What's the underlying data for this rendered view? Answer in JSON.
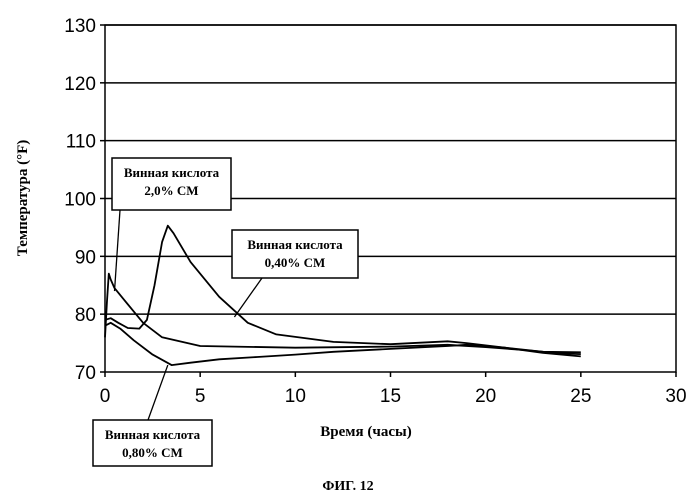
{
  "chart_data": {
    "type": "line",
    "title": "",
    "caption": "ФИГ. 12",
    "xlabel": "Время (часы)",
    "ylabel": "Температура (°F)",
    "xlim": [
      0,
      30
    ],
    "ylim": [
      70,
      130
    ],
    "xticks": [
      0,
      5,
      10,
      15,
      20,
      25,
      30
    ],
    "yticks": [
      70,
      80,
      90,
      100,
      110,
      120,
      130
    ],
    "grid": "horizontal",
    "series": [
      {
        "name": "Винная кислота 2,0% СМ",
        "color": "#000000",
        "x": [
          0,
          0.1,
          0.2,
          0.3,
          0.5,
          1,
          1.5,
          2,
          3,
          5,
          10,
          15,
          18,
          20,
          22,
          24,
          25
        ],
        "y": [
          76,
          82,
          87,
          86,
          84.5,
          82.5,
          80.5,
          78.5,
          76,
          74.5,
          74.2,
          74.4,
          74.7,
          74.3,
          73.8,
          73.2,
          73.1
        ]
      },
      {
        "name": "Винная кислота 0,40% СМ",
        "color": "#000000",
        "x": [
          0,
          0.3,
          0.7,
          1.2,
          1.8,
          2.2,
          2.6,
          3,
          3.3,
          3.6,
          4.5,
          6,
          7.5,
          9,
          12,
          15,
          18,
          19,
          21,
          23,
          25
        ],
        "y": [
          79,
          79.3,
          78.5,
          77.6,
          77.5,
          79,
          85,
          92.5,
          95.3,
          94,
          89,
          83,
          78.5,
          76.5,
          75.2,
          74.8,
          75.3,
          75,
          74.2,
          73.5,
          73.4
        ]
      },
      {
        "name": "Винная кислота 0,80% СМ",
        "color": "#000000",
        "x": [
          0,
          0.3,
          0.8,
          1.5,
          2.5,
          3.5,
          4.5,
          6,
          8,
          10,
          12,
          15,
          18,
          19,
          21,
          23,
          25
        ],
        "y": [
          78,
          78.5,
          77.5,
          75.5,
          73,
          71.2,
          71.6,
          72.2,
          72.6,
          73,
          73.5,
          74,
          74.5,
          74.7,
          74.2,
          73.3,
          72.7
        ]
      }
    ],
    "annotations": [
      {
        "series": 0,
        "lines": [
          "Винная кислота",
          "2,0% СМ"
        ]
      },
      {
        "series": 1,
        "lines": [
          "Винная кислота",
          "0,40% СМ"
        ]
      },
      {
        "series": 2,
        "lines": [
          "Винная кислота",
          "0,80% СМ"
        ]
      }
    ]
  }
}
